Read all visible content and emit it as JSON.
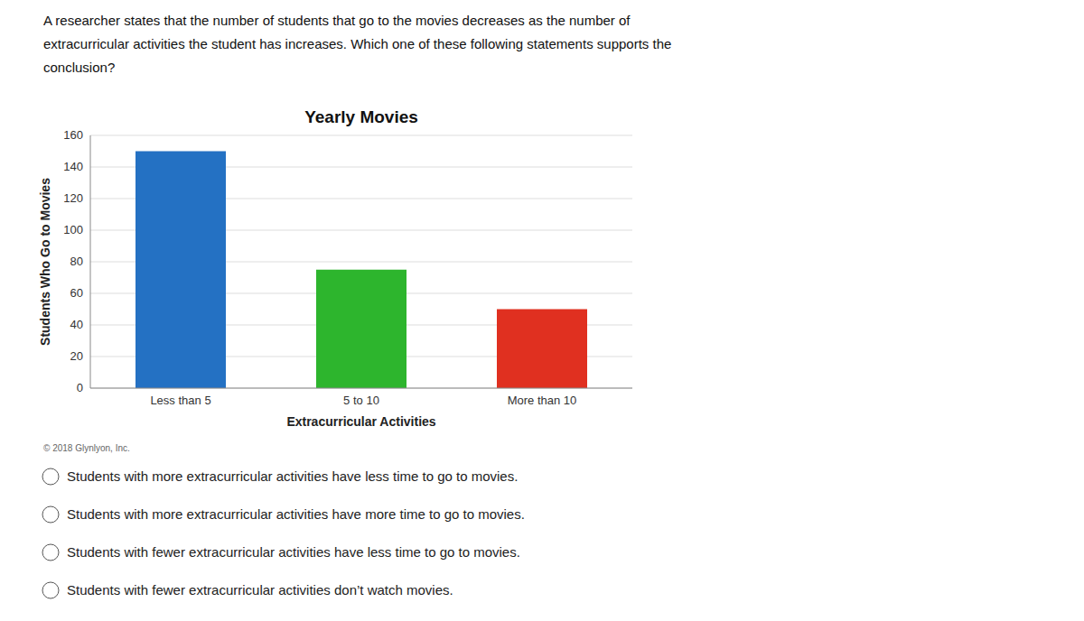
{
  "chart_data": {
    "type": "bar",
    "title": "Yearly Movies",
    "categories": [
      "Less than 5",
      "5 to 10",
      "More than 10"
    ],
    "values": [
      150,
      75,
      50
    ],
    "colors": [
      "#2471c3",
      "#2db52d",
      "#e03020"
    ],
    "xlabel": "Extracurricular Activities",
    "ylabel": "Students Who Go to Movies",
    "ylim": [
      0,
      160
    ],
    "yticks": [
      0,
      20,
      40,
      60,
      80,
      100,
      120,
      140,
      160
    ],
    "grid": true
  },
  "question_lines": [
    "A researcher states that the number of students that go to the movies decreases as the number of",
    "extracurricular activities the student has increases. Which one of these following statements supports the",
    "conclusion?"
  ],
  "copyright": "© 2018 Glynlyon, Inc.",
  "options": [
    "Students with more extracurricular activities have less time to go to movies.",
    "Students with more extracurricular activities have more time to go to movies.",
    "Students with fewer extracurricular activities have less time to go to movies.",
    "Students with fewer extracurricular activities don’t watch movies."
  ]
}
